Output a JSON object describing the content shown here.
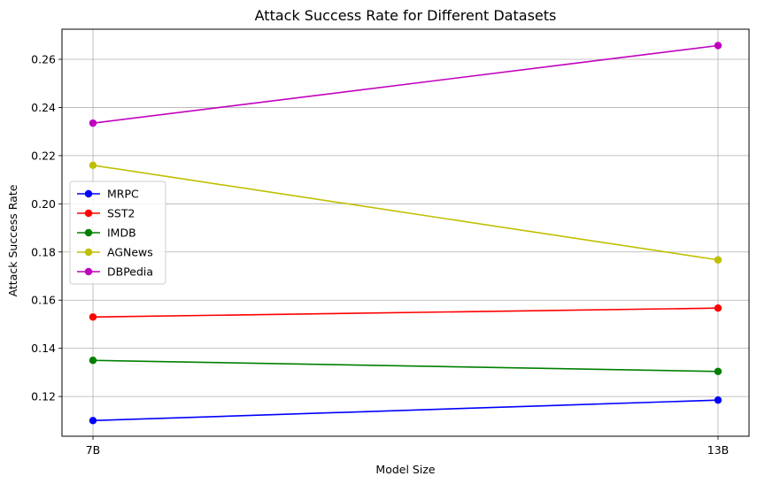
{
  "chart_data": {
    "type": "line",
    "title": "Attack Success Rate for Different Datasets",
    "xlabel": "Model Size",
    "ylabel": "Attack Success Rate",
    "categories": [
      "7B",
      "13B"
    ],
    "ylim": [
      0.1035,
      0.2725
    ],
    "yticks": [
      "0.12",
      "0.14",
      "0.16",
      "0.18",
      "0.20",
      "0.22",
      "0.24",
      "0.26"
    ],
    "grid": true,
    "legend_position": "center-left",
    "series": [
      {
        "name": "MRPC",
        "color": "#0000ff",
        "values": [
          0.11,
          0.1185
        ]
      },
      {
        "name": "SST2",
        "color": "#ff0000",
        "values": [
          0.153,
          0.1567
        ]
      },
      {
        "name": "IMDB",
        "color": "#008000",
        "values": [
          0.135,
          0.1304
        ]
      },
      {
        "name": "AGNews",
        "color": "#bfbf00",
        "values": [
          0.216,
          0.1767
        ]
      },
      {
        "name": "DBPedia",
        "color": "#bf00bf",
        "values": [
          0.2335,
          0.2657
        ]
      }
    ]
  }
}
